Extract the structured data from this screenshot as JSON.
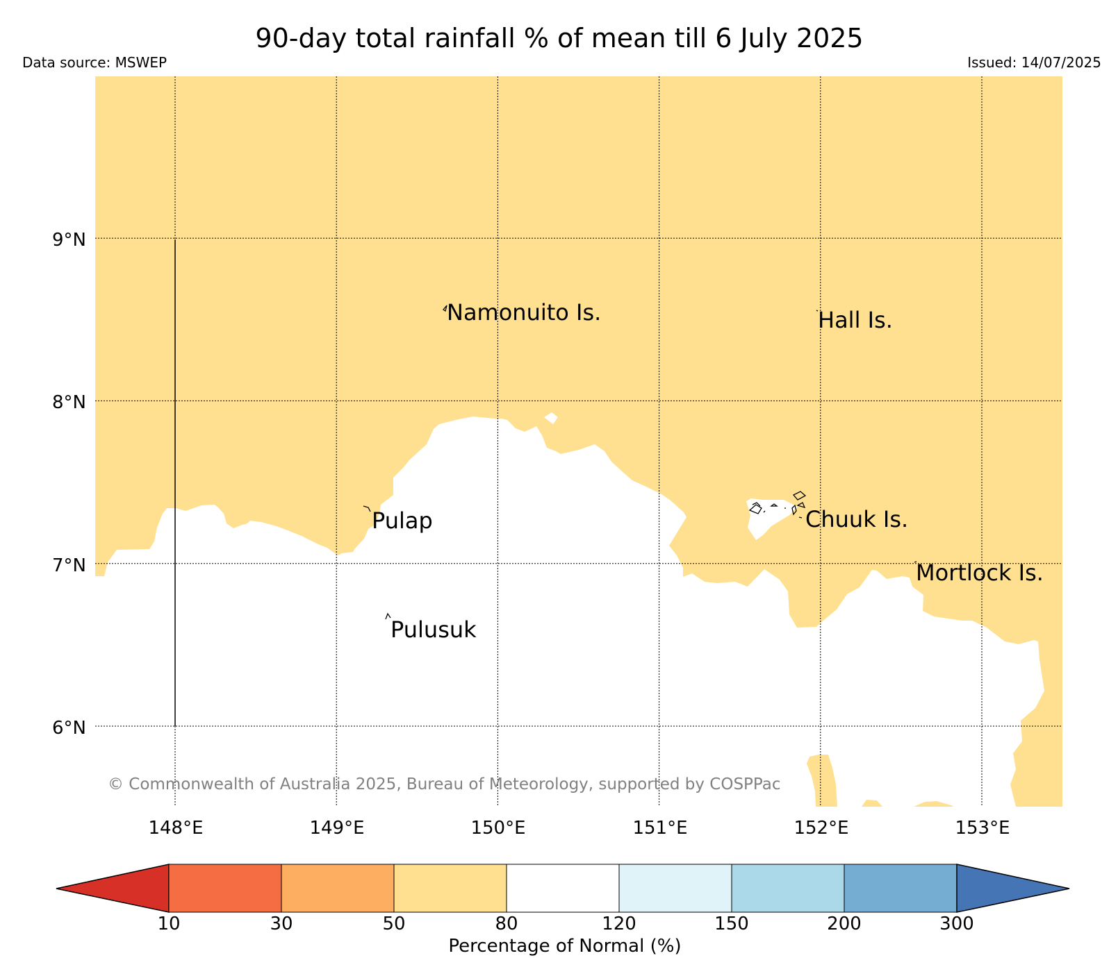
{
  "title": "90-day total rainfall % of mean till 6 July 2025",
  "source": "Data source: MSWEP",
  "issued": "Issued: 14/07/2025",
  "copyright": "© Commonwealth of Australia 2025, Bureau of Meteorology, supported by COSPPac",
  "map": {
    "lat_range": [
      5.5,
      10.0
    ],
    "lon_range": [
      147.5,
      153.5
    ],
    "lat_ticks": [
      {
        "value": 9,
        "label": "9°N"
      },
      {
        "value": 8,
        "label": "8°N"
      },
      {
        "value": 7,
        "label": "7°N"
      },
      {
        "value": 6,
        "label": "6°N"
      }
    ],
    "lon_ticks": [
      {
        "value": 148,
        "label": "148°E"
      },
      {
        "value": 149,
        "label": "149°E"
      },
      {
        "value": 150,
        "label": "150°E"
      },
      {
        "value": 151,
        "label": "151°E"
      },
      {
        "value": 152,
        "label": "152°E"
      },
      {
        "value": 153,
        "label": "153°E"
      }
    ],
    "gridlines": true,
    "field_colors": {
      "50-80": "#fee090",
      "80-120": "#ffffff"
    },
    "places": [
      {
        "name": "Namonuito Is.",
        "lon": 149.67,
        "lat": 8.57
      },
      {
        "name": "Hall Is.",
        "lon": 151.99,
        "lat": 8.52
      },
      {
        "name": "Pulap",
        "lon": 149.22,
        "lat": 7.29
      },
      {
        "name": "Chuuk Is.",
        "lon": 151.86,
        "lat": 7.31
      },
      {
        "name": "Mortlock Is.",
        "lon": 152.6,
        "lat": 6.97
      },
      {
        "name": "Pulusuk",
        "lon": 149.33,
        "lat": 6.62
      }
    ]
  },
  "colorbar": {
    "label": "Percentage of Normal (%)",
    "ticks": [
      "10",
      "30",
      "50",
      "80",
      "120",
      "150",
      "200",
      "300"
    ],
    "colors": [
      "#d73027",
      "#f46d43",
      "#fdae61",
      "#fee090",
      "#ffffff",
      "#e0f3f8",
      "#abd9e9",
      "#74add1",
      "#4575b4"
    ]
  }
}
